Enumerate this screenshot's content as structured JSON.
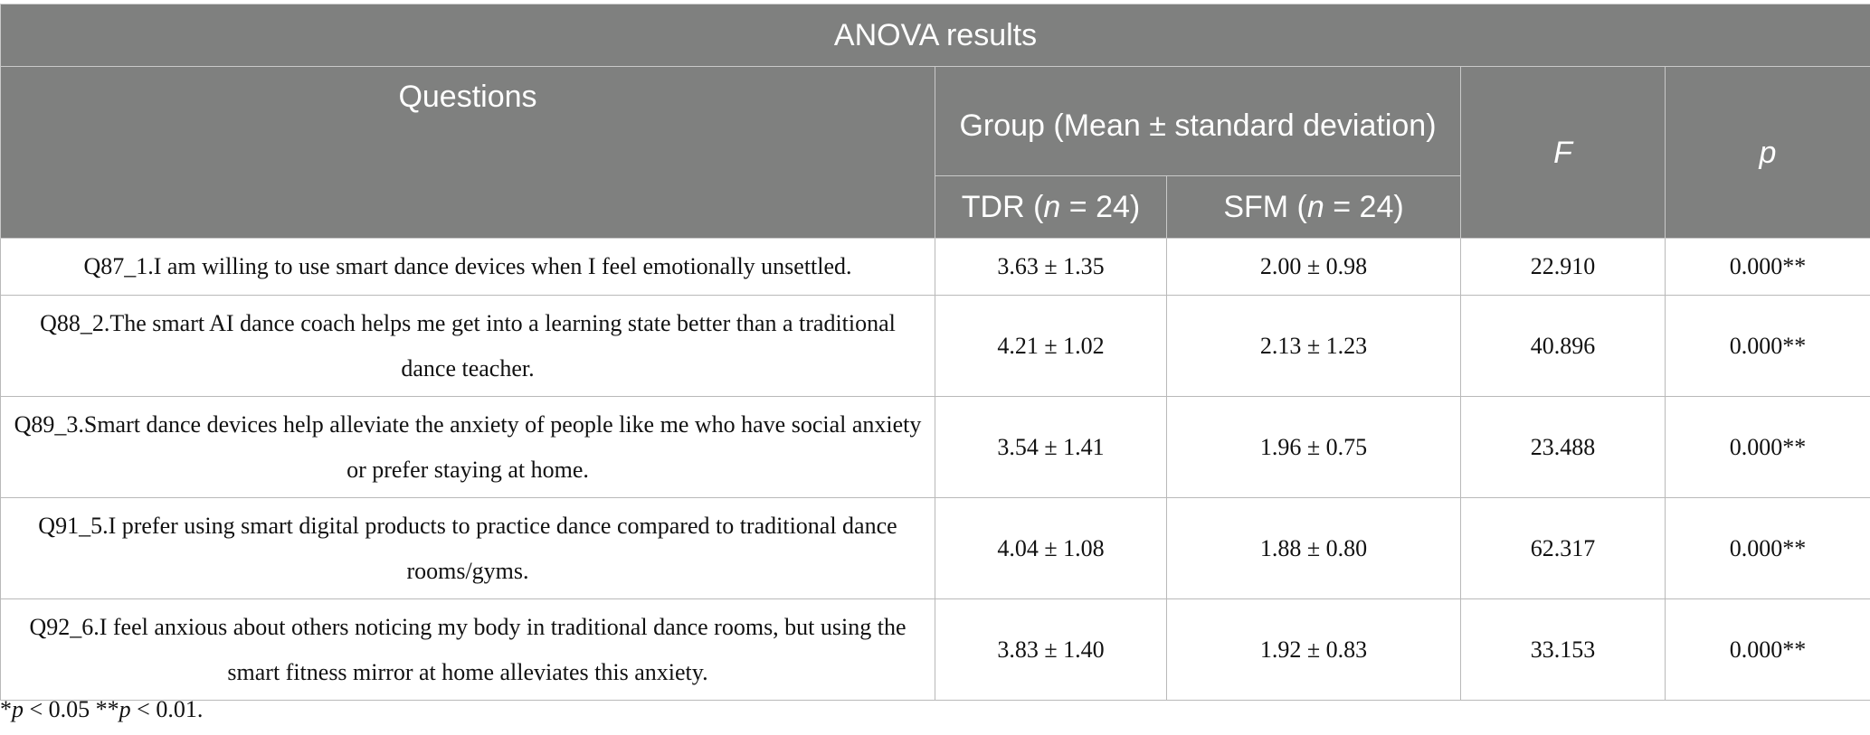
{
  "table": {
    "title": "ANOVA results",
    "headers": {
      "questions": "Questions",
      "group": "Group (Mean ± standard deviation)",
      "tdr": "TDR (n = 24)",
      "sfm": "SFM (n = 24)",
      "f": "F",
      "p": "p"
    },
    "rows": [
      {
        "question": "Q87_1.I am willing to use smart dance devices when I feel emotionally unsettled.",
        "tdr": "3.63 ± 1.35",
        "sfm": "2.00 ± 0.98",
        "f": "22.910",
        "p": "0.000**"
      },
      {
        "question": "Q88_2.The smart AI dance coach helps me get into a learning state better than a traditional dance teacher.",
        "tdr": "4.21 ± 1.02",
        "sfm": "2.13 ± 1.23",
        "f": "40.896",
        "p": "0.000**"
      },
      {
        "question": "Q89_3.Smart dance devices help alleviate the anxiety of people like me who have social anxiety or prefer staying at home.",
        "tdr": "3.54 ± 1.41",
        "sfm": "1.96 ± 0.75",
        "f": "23.488",
        "p": "0.000**"
      },
      {
        "question": "Q91_5.I prefer using smart digital products to practice dance compared to traditional dance rooms/gyms.",
        "tdr": "4.04 ± 1.08",
        "sfm": "1.88 ± 0.80",
        "f": "62.317",
        "p": "0.000**"
      },
      {
        "question": "Q92_6.I feel anxious about others noticing my body in traditional dance rooms, but using the smart fitness mirror at home alleviates this anxiety.",
        "tdr": "3.83 ± 1.40",
        "sfm": "1.92 ± 0.83",
        "f": "33.153",
        "p": "0.000**"
      }
    ]
  },
  "footnote": "*p < 0.05 **p < 0.01."
}
